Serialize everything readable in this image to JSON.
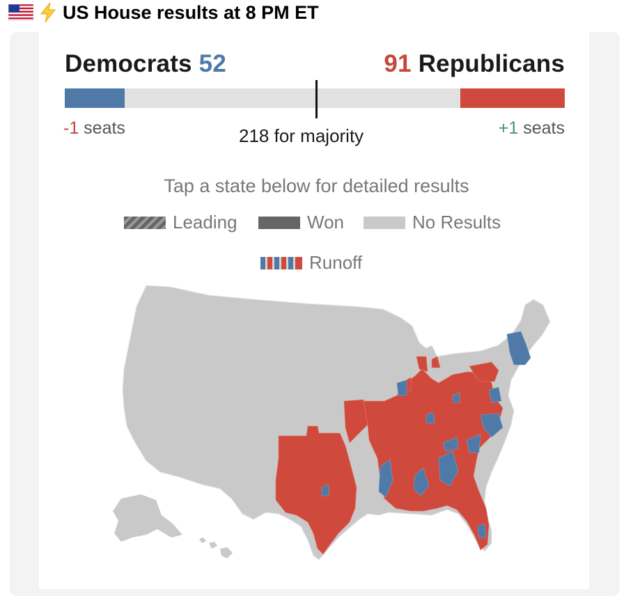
{
  "header": {
    "title": "US House results at 8 PM ET",
    "flag_icon": "us-flag-icon",
    "bolt_icon": "lightning-bolt-icon"
  },
  "chart_data": {
    "type": "bar",
    "democrats": {
      "label": "Democrats",
      "seats": 52,
      "change": "-1",
      "change_suffix": " seats",
      "color": "#4f7aa8"
    },
    "republicans": {
      "label": "Republicans",
      "seats": 91,
      "change": "+1",
      "change_suffix": " seats",
      "color": "#d0493d"
    },
    "total_seats": 435,
    "majority_seats": 218,
    "majority_label": "218 for majority",
    "instruction": "Tap a state below for detailed results",
    "legend": [
      {
        "label": "Leading",
        "style": "hatched"
      },
      {
        "label": "Won",
        "style": "solid"
      },
      {
        "label": "No Results",
        "style": "light"
      },
      {
        "label": "Runoff",
        "style": "striped"
      }
    ],
    "map": "us-house-district-map",
    "map_colors": {
      "dem": "#4f7aa8",
      "rep": "#d0493d",
      "none": "#c9c9c9"
    }
  }
}
